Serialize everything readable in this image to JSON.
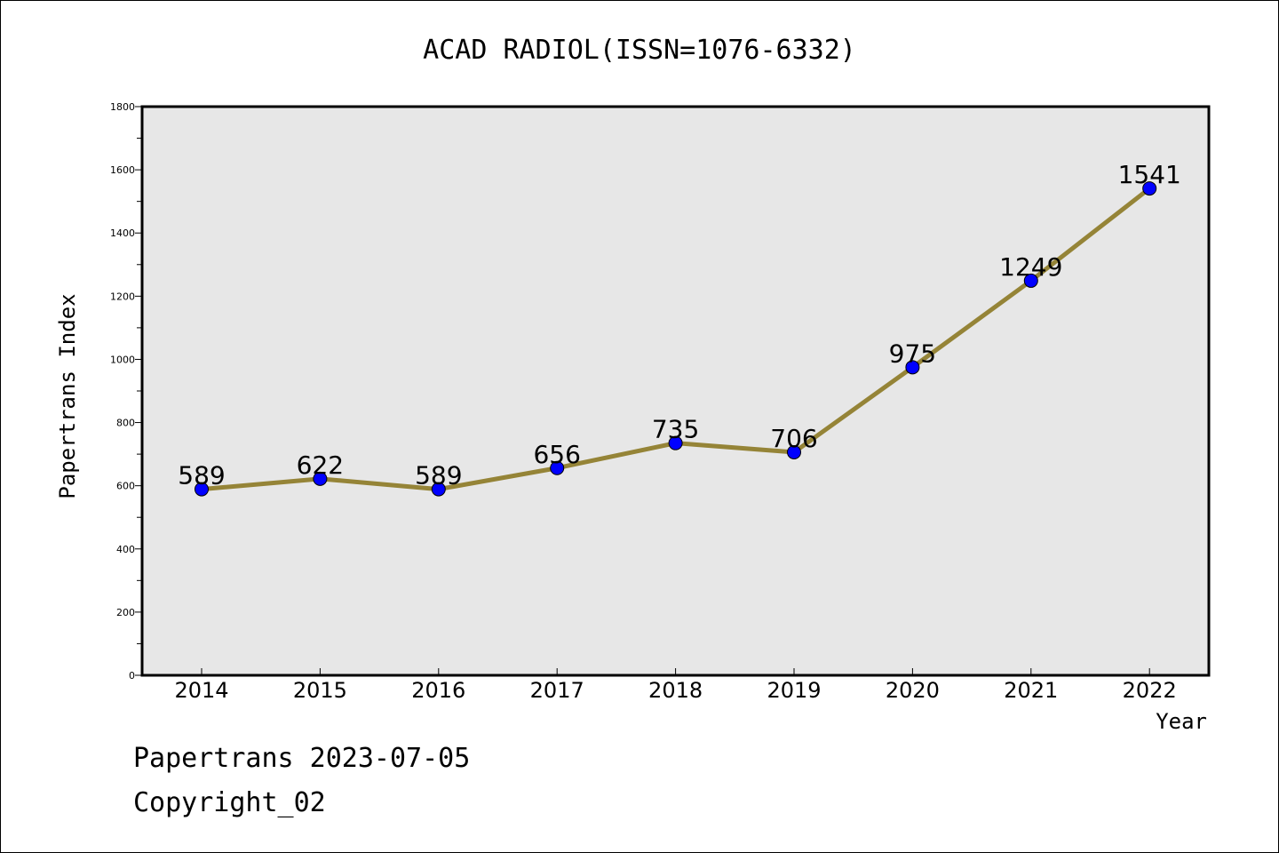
{
  "chart_data": {
    "type": "line",
    "title": "ACAD RADIOL(ISSN=1076-6332)",
    "xlabel": "Year",
    "ylabel": "Papertrans Index",
    "categories": [
      "2014",
      "2015",
      "2016",
      "2017",
      "2018",
      "2019",
      "2020",
      "2021",
      "2022"
    ],
    "series": [
      {
        "values": [
          589,
          622,
          589,
          656,
          735,
          706,
          975,
          1249,
          1541
        ]
      }
    ],
    "data_labels": [
      "589",
      "622",
      "589",
      "656",
      "735",
      "706",
      "975",
      "1249",
      "1541"
    ],
    "ylim": [
      0,
      1800
    ],
    "yticks": [
      "0",
      "200",
      "400",
      "600",
      "800",
      "1000",
      "1200",
      "1400",
      "1600",
      "1800"
    ],
    "grid": false,
    "colors": {
      "line": "#958437",
      "marker": "#0000ff",
      "plot_background": "#e7e7e7"
    }
  },
  "footer": {
    "date_line": "Papertrans 2023-07-05",
    "copyright": "Copyright_02"
  }
}
